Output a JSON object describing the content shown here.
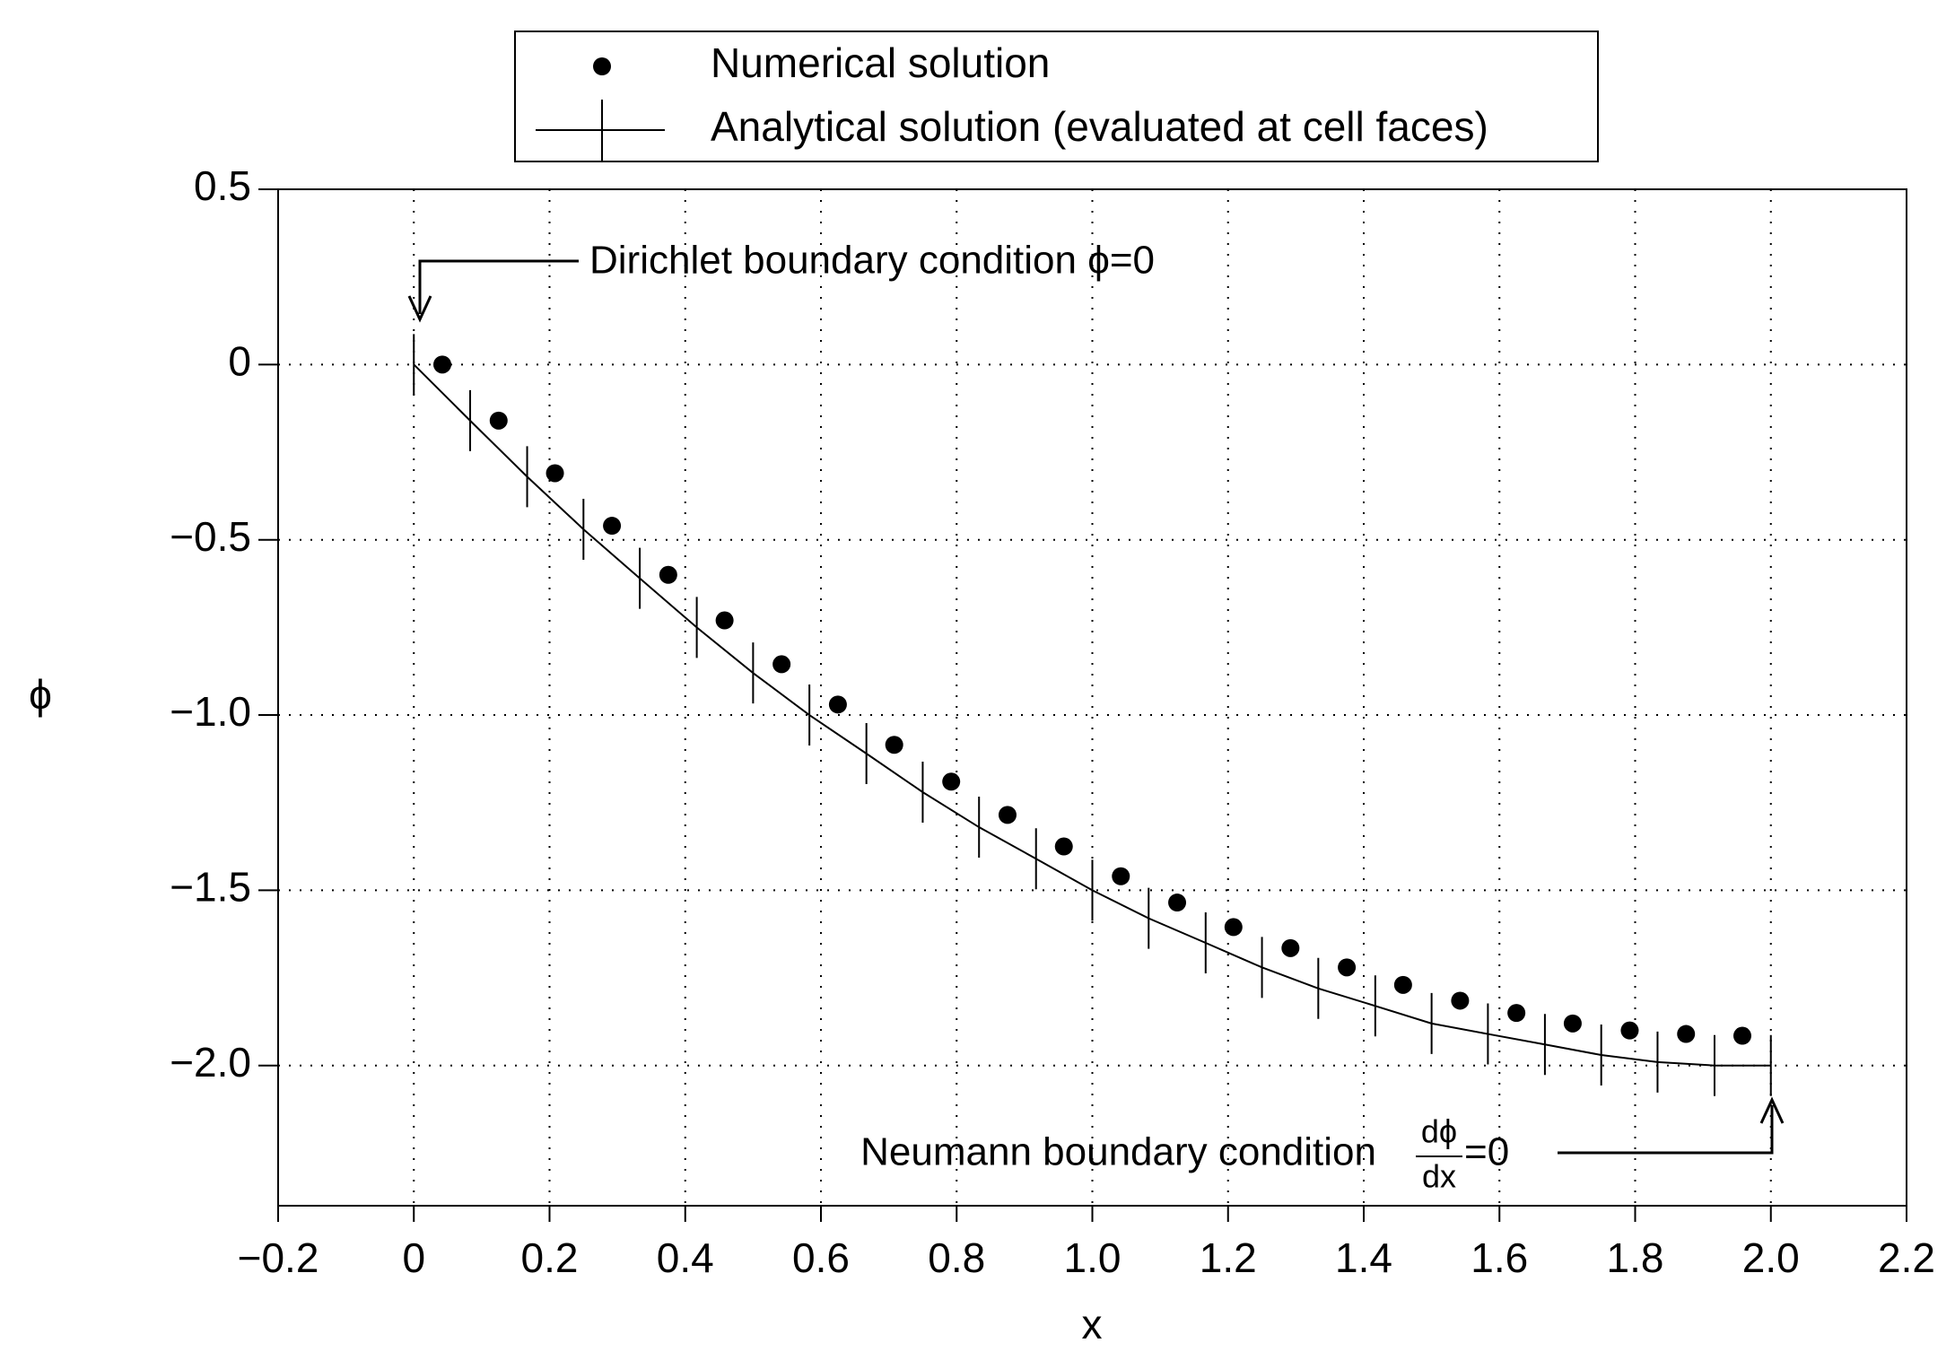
{
  "chart_data": {
    "type": "line",
    "xlabel": "x",
    "ylabel": "ϕ",
    "xlim": [
      -0.2,
      2.2
    ],
    "ylim": [
      -2.4,
      0.5
    ],
    "xticks": [
      {
        "value": -0.2,
        "label": "−0.2"
      },
      0,
      0.2,
      0.4,
      0.6,
      0.8,
      {
        "value": 1.0,
        "label": "1.0"
      },
      1.2,
      1.4,
      1.6,
      1.8,
      {
        "value": 2.0,
        "label": "2.0"
      },
      2.2
    ],
    "yticks": [
      0.5,
      0,
      {
        "value": -0.5,
        "label": "−0.5"
      },
      {
        "value": -1.0,
        "label": "−1.0"
      },
      {
        "value": -1.5,
        "label": "−1.5"
      },
      {
        "value": -2.0,
        "label": "−2.0"
      }
    ],
    "grid": true,
    "legend": "top",
    "series": [
      {
        "name": "Numerical solution",
        "type": "scatter",
        "color": "#000000",
        "x": [
          0.042,
          0.125,
          0.208,
          0.292,
          0.375,
          0.458,
          0.542,
          0.625,
          0.708,
          0.792,
          0.875,
          0.958,
          1.042,
          1.125,
          1.208,
          1.292,
          1.375,
          1.458,
          1.542,
          1.625,
          1.708,
          1.792,
          1.875,
          1.958
        ],
        "values": [
          0,
          -0.16,
          -0.31,
          -0.46,
          -0.6,
          -0.73,
          -0.855,
          -0.97,
          -1.085,
          -1.19,
          -1.285,
          -1.375,
          -1.46,
          -1.535,
          -1.605,
          -1.665,
          -1.72,
          -1.77,
          -1.815,
          -1.85,
          -1.88,
          -1.9,
          -1.91,
          -1.915
        ]
      },
      {
        "name": "Analytical solution (evaluated at cell faces)",
        "type": "line",
        "color": "#000000",
        "x": [
          0,
          0.083,
          0.167,
          0.25,
          0.333,
          0.417,
          0.5,
          0.583,
          0.667,
          0.75,
          0.833,
          0.917,
          1.0,
          1.083,
          1.167,
          1.25,
          1.333,
          1.417,
          1.5,
          1.583,
          1.667,
          1.75,
          1.833,
          1.917,
          2.0
        ],
        "values": [
          0,
          -0.16,
          -0.32,
          -0.47,
          -0.61,
          -0.75,
          -0.88,
          -1.0,
          -1.11,
          -1.22,
          -1.32,
          -1.41,
          -1.5,
          -1.58,
          -1.65,
          -1.72,
          -1.78,
          -1.83,
          -1.88,
          -1.91,
          -1.94,
          -1.97,
          -1.99,
          -2.0,
          -2.0
        ]
      }
    ],
    "annotations": {
      "dirichlet": "Dirichlet boundary condition  ϕ=0",
      "neumann": "Neumann boundary condition",
      "neumann_numerator": "dϕ",
      "neumann_denominator": "dx",
      "neumann_rhs": "=0"
    }
  }
}
